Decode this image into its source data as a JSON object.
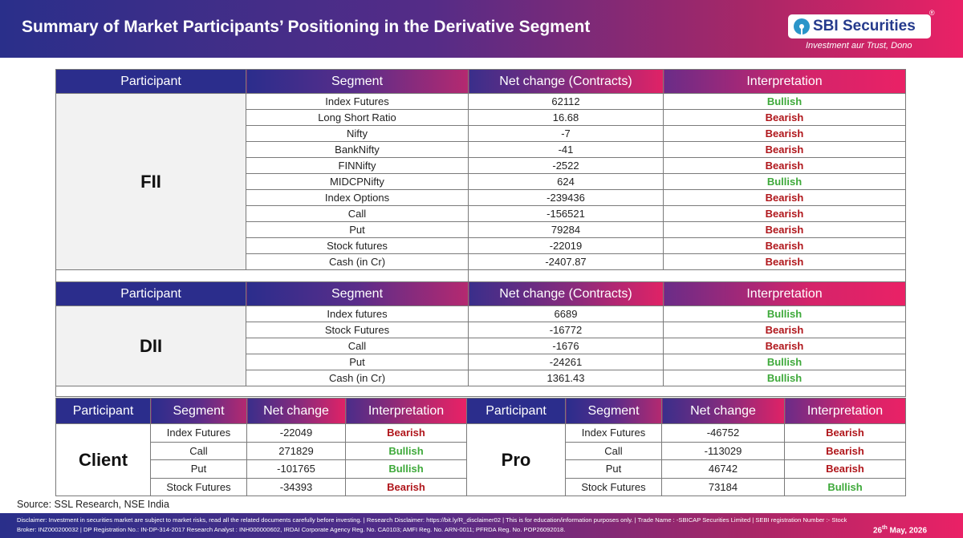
{
  "header": {
    "title": "Summary of Market Participants’ Positioning in the Derivative Segment",
    "logo_text": "SBI Securities",
    "logo_reg": "®",
    "tagline": "Investment aur Trust, Dono"
  },
  "fii_table": {
    "headers": [
      "Participant",
      "Segment",
      "Net change (Contracts)",
      "Interpretation"
    ],
    "participant": "FII",
    "rows": [
      {
        "segment": "Index Futures",
        "value": "62112",
        "interpretation": "Bullish"
      },
      {
        "segment": "Long Short Ratio",
        "value": "16.68",
        "interpretation": "Bearish"
      },
      {
        "segment": "Nifty",
        "value": "-7",
        "interpretation": "Bearish"
      },
      {
        "segment": "BankNifty",
        "value": "-41",
        "interpretation": "Bearish"
      },
      {
        "segment": "FINNifty",
        "value": "-2522",
        "interpretation": "Bearish"
      },
      {
        "segment": "MIDCPNifty",
        "value": "624",
        "interpretation": "Bullish"
      },
      {
        "segment": "Index Options",
        "value": "-239436",
        "interpretation": "Bearish"
      },
      {
        "segment": "Call",
        "value": "-156521",
        "interpretation": "Bearish"
      },
      {
        "segment": "Put",
        "value": "79284",
        "interpretation": "Bearish"
      },
      {
        "segment": "Stock futures",
        "value": "-22019",
        "interpretation": "Bearish"
      },
      {
        "segment": "Cash (in Cr)",
        "value": "-2407.87",
        "interpretation": "Bearish"
      }
    ]
  },
  "dii_table": {
    "headers": [
      "Participant",
      "Segment",
      "Net change (Contracts)",
      "Interpretation"
    ],
    "participant": "DII",
    "rows": [
      {
        "segment": "Index futures",
        "value": "6689",
        "interpretation": "Bullish"
      },
      {
        "segment": "Stock Futures",
        "value": "-16772",
        "interpretation": "Bearish"
      },
      {
        "segment": "Call",
        "value": "-1676",
        "interpretation": "Bearish"
      },
      {
        "segment": "Put",
        "value": "-24261",
        "interpretation": "Bullish"
      },
      {
        "segment": "Cash (in Cr)",
        "value": "1361.43",
        "interpretation": "Bullish"
      }
    ]
  },
  "client_pro_table": {
    "headers": [
      "Participant",
      "Segment",
      "Net change",
      "Interpretation",
      "Participant",
      "Segment",
      "Net change",
      "Interpretation"
    ],
    "client_label": "Client",
    "pro_label": "Pro",
    "rows": [
      {
        "client_segment": "Index Futures",
        "client_value": "-22049",
        "client_interpretation": "Bearish",
        "pro_segment": "Index Futures",
        "pro_value": "-46752",
        "pro_interpretation": "Bearish"
      },
      {
        "client_segment": "Call",
        "client_value": "271829",
        "client_interpretation": "Bullish",
        "pro_segment": "Call",
        "pro_value": "-113029",
        "pro_interpretation": "Bearish"
      },
      {
        "client_segment": "Put",
        "client_value": "-101765",
        "client_interpretation": "Bullish",
        "pro_segment": "Put",
        "pro_value": "46742",
        "pro_interpretation": "Bearish"
      },
      {
        "client_segment": "Stock Futures",
        "client_value": "-34393",
        "client_interpretation": "Bearish",
        "pro_segment": "Stock Futures",
        "pro_value": "73184",
        "pro_interpretation": "Bullish"
      }
    ]
  },
  "source": "Source: SSL Research, NSE India",
  "footer": {
    "disclaimer": "Disclaimer: Investment in securities market are subject to market risks, read all the related documents carefully before investing.  | Research Disclaimer: https://bit.ly/R_disclaimer02 | This is for education/information purposes only. | Trade Name : -SBICAP Securities Limited | SEBI registration Number :- Stock Broker: INZ000200032 | DP Registration No.: IN-DP-314-2017 Research Analyst : INH000000602, IRDAI Corporate Agency Reg. No. CA0103; AMFI Reg. No. ARN-0011; PFRDA Reg. No. POP26092018.",
    "date_day": "26",
    "date_suffix": "th",
    "date_rest": " May, 2026"
  },
  "colors": {
    "bullish": "#3ea93a",
    "bearish": "#b0161b",
    "brand_dark": "#2a2f8a",
    "brand_pink": "#ea2166"
  }
}
